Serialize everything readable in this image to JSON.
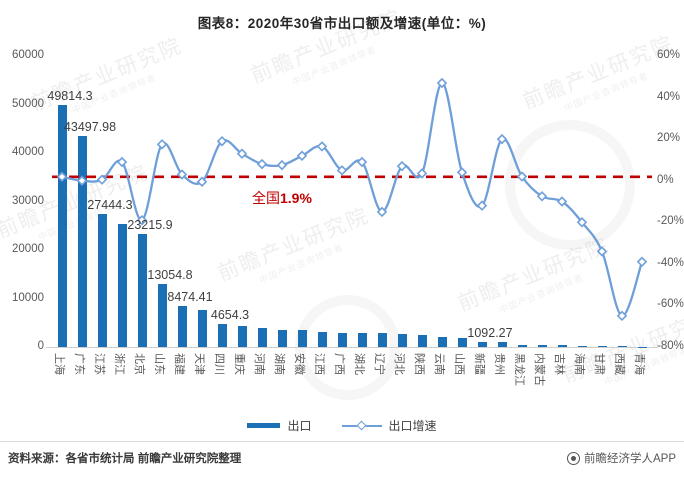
{
  "title": "图表8：2020年30省市出口额及增速(单位：%)",
  "watermark": {
    "main": "前瞻产业研究院",
    "sub": "中国产业咨询领导者"
  },
  "chart_data": {
    "type": "bar+line",
    "title": "图表8：2020年30省市出口额及增速(单位：%)",
    "categories": [
      "上海",
      "广东",
      "江苏",
      "浙江",
      "北京",
      "山东",
      "福建",
      "天津",
      "四川",
      "重庆",
      "河南",
      "湖南",
      "安徽",
      "江西",
      "广西",
      "湖北",
      "辽宁",
      "河北",
      "陕西",
      "云南",
      "山西",
      "新疆",
      "贵州",
      "黑龙江",
      "内蒙古",
      "吉林",
      "海南",
      "甘肃",
      "西藏",
      "青海"
    ],
    "series": [
      {
        "name": "出口",
        "type": "bar",
        "axis": "left",
        "color": "#1a6fb5",
        "values": [
          49814.3,
          43497.98,
          27444.3,
          25400,
          23215.9,
          13054.8,
          8474.41,
          7650,
          4654.3,
          4300,
          3950,
          3500,
          3450,
          3100,
          2950,
          2870,
          2820,
          2750,
          2470,
          2050,
          1950,
          1092.27,
          1000,
          430,
          380,
          330,
          280,
          230,
          120,
          90
        ]
      },
      {
        "name": "出口增速",
        "type": "line",
        "axis": "right",
        "color": "#6f9fd8",
        "values": [
          1.9,
          0,
          0.5,
          9,
          -19,
          17.5,
          3,
          -0.5,
          19,
          13,
          8,
          7.5,
          12,
          16.5,
          5,
          9,
          -15,
          7,
          3.5,
          47,
          4,
          -12,
          20,
          2,
          -7.5,
          -10,
          -20,
          -34,
          -65,
          -39
        ]
      }
    ],
    "bar_labels": [
      {
        "index": 0,
        "text": "49814.3"
      },
      {
        "index": 1,
        "text": "43497.98"
      },
      {
        "index": 2,
        "text": "27444.3"
      },
      {
        "index": 4,
        "text": "23215.9"
      },
      {
        "index": 5,
        "text": "13054.8"
      },
      {
        "index": 6,
        "text": "8474.41"
      },
      {
        "index": 8,
        "text": "4654.3"
      },
      {
        "index": 21,
        "text": "1092.27"
      }
    ],
    "left_axis": {
      "min": 0,
      "max": 60000,
      "step": 10000,
      "ticks": [
        "0",
        "10000",
        "20000",
        "30000",
        "40000",
        "50000",
        "60000"
      ]
    },
    "right_axis": {
      "min": -80,
      "max": 60,
      "step": 20,
      "ticks": [
        "60%",
        "40%",
        "20%",
        "0%",
        "-20%",
        "-40%",
        "-60%",
        "-80%"
      ]
    },
    "reference_line": {
      "value": 1.9,
      "color": "#bf0000",
      "label_prefix": "全国",
      "label_value": "1.9%"
    },
    "legend": [
      "出口",
      "出口增速"
    ],
    "legend_position": "bottom",
    "grid": false
  },
  "footer": {
    "source": "资料来源：各省市统计局 前瞻产业研究院整理",
    "credit": "前瞻经济学人APP"
  }
}
